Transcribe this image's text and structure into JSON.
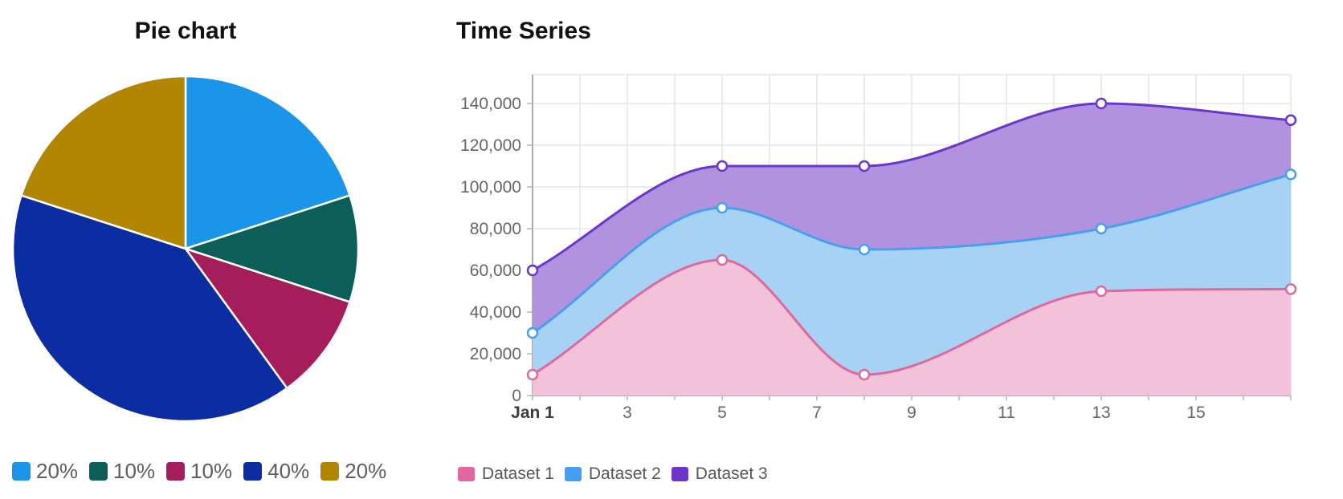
{
  "chart_data": [
    {
      "type": "pie",
      "title": "Pie chart",
      "labels": [
        "20%",
        "10%",
        "10%",
        "40%",
        "20%"
      ],
      "values": [
        20,
        10,
        10,
        40,
        20
      ],
      "colors": [
        "#1b95e9",
        "#0c5f58",
        "#a51d5b",
        "#0c2da2",
        "#b28600"
      ],
      "start_angle_deg": 0,
      "direction": "clockwise",
      "legend_position": "bottom"
    },
    {
      "type": "area",
      "title": "Time Series",
      "x_days": [
        1,
        5,
        8,
        13,
        17
      ],
      "x_first_label": "Jan 1",
      "x_ticks": [
        {
          "day": 1,
          "label": "Jan 1"
        },
        {
          "day": 3,
          "label": "3"
        },
        {
          "day": 5,
          "label": "5"
        },
        {
          "day": 7,
          "label": "7"
        },
        {
          "day": 9,
          "label": "9"
        },
        {
          "day": 11,
          "label": "11"
        },
        {
          "day": 13,
          "label": "13"
        },
        {
          "day": 15,
          "label": "15"
        }
      ],
      "series": [
        {
          "name": "Dataset 1",
          "values": [
            10000,
            65000,
            10000,
            50000,
            51000
          ],
          "line_color": "#e2679f",
          "fill_color": "#f2c2d8"
        },
        {
          "name": "Dataset 2",
          "values": [
            30000,
            90000,
            70000,
            80000,
            106000
          ],
          "line_color": "#45a0f1",
          "fill_color": "#a8d2f4"
        },
        {
          "name": "Dataset 3",
          "values": [
            60000,
            110000,
            110000,
            140000,
            132000
          ],
          "line_color": "#6b36c9",
          "fill_color": "#b092df"
        }
      ],
      "y_ticks": [
        0,
        20000,
        40000,
        60000,
        80000,
        100000,
        120000,
        140000
      ],
      "ylim": [
        0,
        155000
      ],
      "xlim": [
        1,
        17
      ],
      "grid": true,
      "legend_position": "bottom"
    }
  ],
  "styles": {
    "grid_color": "#e6e6e6",
    "axis_line_color": "#aaaaaa",
    "tick_color": "#b5b5b5",
    "axis_text_color": "#666666",
    "axis_first_label_color": "#3d3d3d",
    "marker_fill": "#ffffff",
    "slice_stroke": "#ffffff"
  }
}
